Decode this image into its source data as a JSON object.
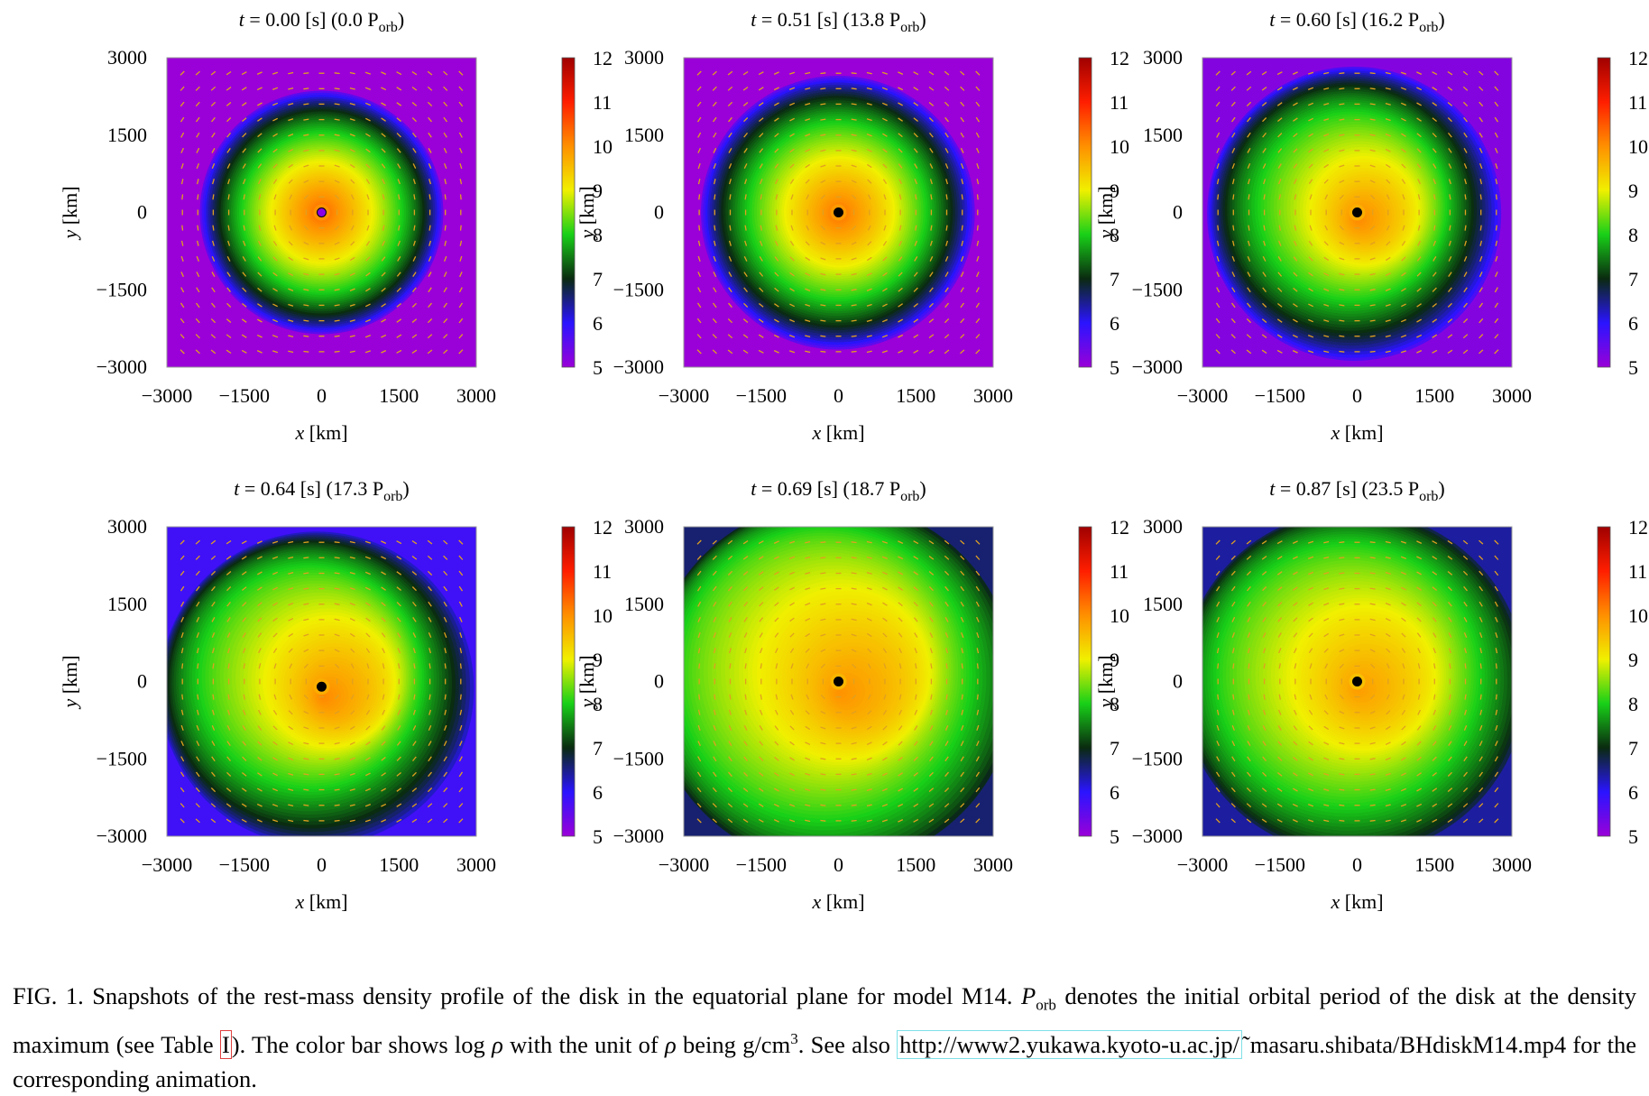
{
  "chart_data": [
    {
      "type": "heatmap",
      "title": {
        "t_var": "t",
        "t_value": "0.00",
        "t_unit": "[s]",
        "p_value": "(0.0 P",
        "p_sub": "orb",
        "p_close": ")"
      },
      "xlabel": {
        "var": "x",
        "unit": "[km]"
      },
      "ylabel": {
        "var": "y",
        "unit": "[km]"
      },
      "xlim": [
        -3000,
        3000
      ],
      "ylim": [
        -3000,
        3000
      ],
      "x_ticks": [
        "−3000",
        "−1500",
        "0",
        "1500",
        "3000"
      ],
      "y_ticks": [
        "3000",
        "1500",
        "0",
        "−1500",
        "−3000"
      ],
      "colorbar": {
        "range": [
          5,
          12
        ],
        "ticks": [
          "12",
          "11",
          "10",
          "9",
          "8",
          "7",
          "6",
          "5"
        ]
      },
      "disk": {
        "max_log_rho": 10.4,
        "background_log_rho": 5.0,
        "outer_radius_km": 2400,
        "offset_km": [
          0,
          0
        ],
        "spiral": 0.0,
        "black_hole_color": "#8a00e6"
      }
    },
    {
      "type": "heatmap",
      "title": {
        "t_var": "t",
        "t_value": "0.51",
        "t_unit": "[s]",
        "p_value": "(13.8 P",
        "p_sub": "orb",
        "p_close": ")"
      },
      "xlabel": {
        "var": "x",
        "unit": "[km]"
      },
      "ylabel": {
        "var": "y",
        "unit": "[km]"
      },
      "xlim": [
        -3000,
        3000
      ],
      "ylim": [
        -3000,
        3000
      ],
      "x_ticks": [
        "−3000",
        "−1500",
        "0",
        "1500",
        "3000"
      ],
      "y_ticks": [
        "3000",
        "1500",
        "0",
        "−1500",
        "−3000"
      ],
      "colorbar": {
        "range": [
          5,
          12
        ],
        "ticks": [
          "12",
          "11",
          "10",
          "9",
          "8",
          "7",
          "6",
          "5"
        ]
      },
      "disk": {
        "max_log_rho": 10.3,
        "background_log_rho": 5.0,
        "outer_radius_km": 2700,
        "offset_km": [
          0,
          0
        ],
        "spiral": 0.1,
        "black_hole_color": "#000000"
      }
    },
    {
      "type": "heatmap",
      "title": {
        "t_var": "t",
        "t_value": "0.60",
        "t_unit": "[s]",
        "p_value": "(16.2 P",
        "p_sub": "orb",
        "p_close": ")"
      },
      "xlabel": {
        "var": "x",
        "unit": "[km]"
      },
      "ylabel": {
        "var": "y",
        "unit": "[km]"
      },
      "xlim": [
        -3000,
        3000
      ],
      "ylim": [
        -3000,
        3000
      ],
      "x_ticks": [
        "−3000",
        "−1500",
        "0",
        "1500",
        "3000"
      ],
      "y_ticks": [
        "3000",
        "1500",
        "0",
        "−1500",
        "−3000"
      ],
      "colorbar": {
        "range": [
          5,
          12
        ],
        "ticks": [
          "12",
          "11",
          "10",
          "9",
          "8",
          "7",
          "6",
          "5"
        ]
      },
      "disk": {
        "max_log_rho": 10.1,
        "background_log_rho": 5.2,
        "outer_radius_km": 2900,
        "offset_km": [
          0,
          0
        ],
        "spiral": 0.5,
        "black_hole_color": "#000000"
      }
    },
    {
      "type": "heatmap",
      "title": {
        "t_var": "t",
        "t_value": "0.64",
        "t_unit": "[s]",
        "p_value": "(17.3 P",
        "p_sub": "orb",
        "p_close": ")"
      },
      "xlabel": {
        "var": "x",
        "unit": "[km]"
      },
      "ylabel": {
        "var": "y",
        "unit": "[km]"
      },
      "xlim": [
        -3000,
        3000
      ],
      "ylim": [
        -3000,
        3000
      ],
      "x_ticks": [
        "−3000",
        "−1500",
        "0",
        "1500",
        "3000"
      ],
      "y_ticks": [
        "3000",
        "1500",
        "0",
        "−1500",
        "−3000"
      ],
      "colorbar": {
        "range": [
          5,
          12
        ],
        "ticks": [
          "12",
          "11",
          "10",
          "9",
          "8",
          "7",
          "6",
          "5"
        ]
      },
      "disk": {
        "max_log_rho": 10.1,
        "background_log_rho": 5.8,
        "outer_radius_km": 3100,
        "offset_km": [
          0,
          -100
        ],
        "spiral": 0.8,
        "black_hole_color": "#000000"
      }
    },
    {
      "type": "heatmap",
      "title": {
        "t_var": "t",
        "t_value": "0.69",
        "t_unit": "[s]",
        "p_value": "(18.7 P",
        "p_sub": "orb",
        "p_close": ")"
      },
      "xlabel": {
        "var": "x",
        "unit": "[km]"
      },
      "ylabel": {
        "var": "y",
        "unit": "[km]"
      },
      "xlim": [
        -3000,
        3000
      ],
      "ylim": [
        -3000,
        3000
      ],
      "x_ticks": [
        "−3000",
        "−1500",
        "0",
        "1500",
        "3000"
      ],
      "y_ticks": [
        "3000",
        "1500",
        "0",
        "−1500",
        "−3000"
      ],
      "colorbar": {
        "range": [
          5,
          12
        ],
        "ticks": [
          "12",
          "11",
          "10",
          "9",
          "8",
          "7",
          "6",
          "5"
        ]
      },
      "disk": {
        "max_log_rho": 10.0,
        "background_log_rho": 6.6,
        "outer_radius_km": 3600,
        "offset_km": [
          0,
          0
        ],
        "spiral": 0.9,
        "black_hole_color": "#000000"
      }
    },
    {
      "type": "heatmap",
      "title": {
        "t_var": "t",
        "t_value": "0.87",
        "t_unit": "[s]",
        "p_value": "(23.5 P",
        "p_sub": "orb",
        "p_close": ")"
      },
      "xlabel": {
        "var": "x",
        "unit": "[km]"
      },
      "ylabel": {
        "var": "y",
        "unit": "[km]"
      },
      "xlim": [
        -3000,
        3000
      ],
      "ylim": [
        -3000,
        3000
      ],
      "x_ticks": [
        "−3000",
        "−1500",
        "0",
        "1500",
        "3000"
      ],
      "y_ticks": [
        "3000",
        "1500",
        "0",
        "−1500",
        "−3000"
      ],
      "colorbar": {
        "range": [
          5,
          12
        ],
        "ticks": [
          "12",
          "11",
          "10",
          "9",
          "8",
          "7",
          "6",
          "5"
        ]
      },
      "disk": {
        "max_log_rho": 9.9,
        "background_log_rho": 6.4,
        "outer_radius_km": 3400,
        "offset_km": [
          0,
          0
        ],
        "spiral": 0.6,
        "black_hole_color": "#000000"
      }
    }
  ],
  "colormap": {
    "values": [
      5,
      6,
      7,
      8,
      9,
      10,
      11,
      12
    ],
    "colors": [
      "#9a00d8",
      "#2a14ff",
      "#0a2a10",
      "#18d018",
      "#f0f000",
      "#ff9000",
      "#ff1e00",
      "#a00000"
    ]
  },
  "caption": {
    "fig_label": "FIG. 1.",
    "text_1": " Snapshots of the rest-mass density profile of the disk in the equatorial plane for model M14. ",
    "p_sym": "P",
    "p_sub": "orb",
    "text_2": " denotes the initial orbital period of the disk at the density maximum (see Table ",
    "table_ref": "I",
    "text_3": "). The color bar shows log ",
    "rho_1": "ρ",
    "text_4": " with the unit of ",
    "rho_2": "ρ",
    "text_5": " being g/cm",
    "exp": "3",
    "text_6": ". See also ",
    "url": "http://www2.yukawa.kyoto-u.ac.jp/",
    "text_7": "˜masaru.shibata/BHdiskM14.mp4 for the corresponding animation."
  }
}
